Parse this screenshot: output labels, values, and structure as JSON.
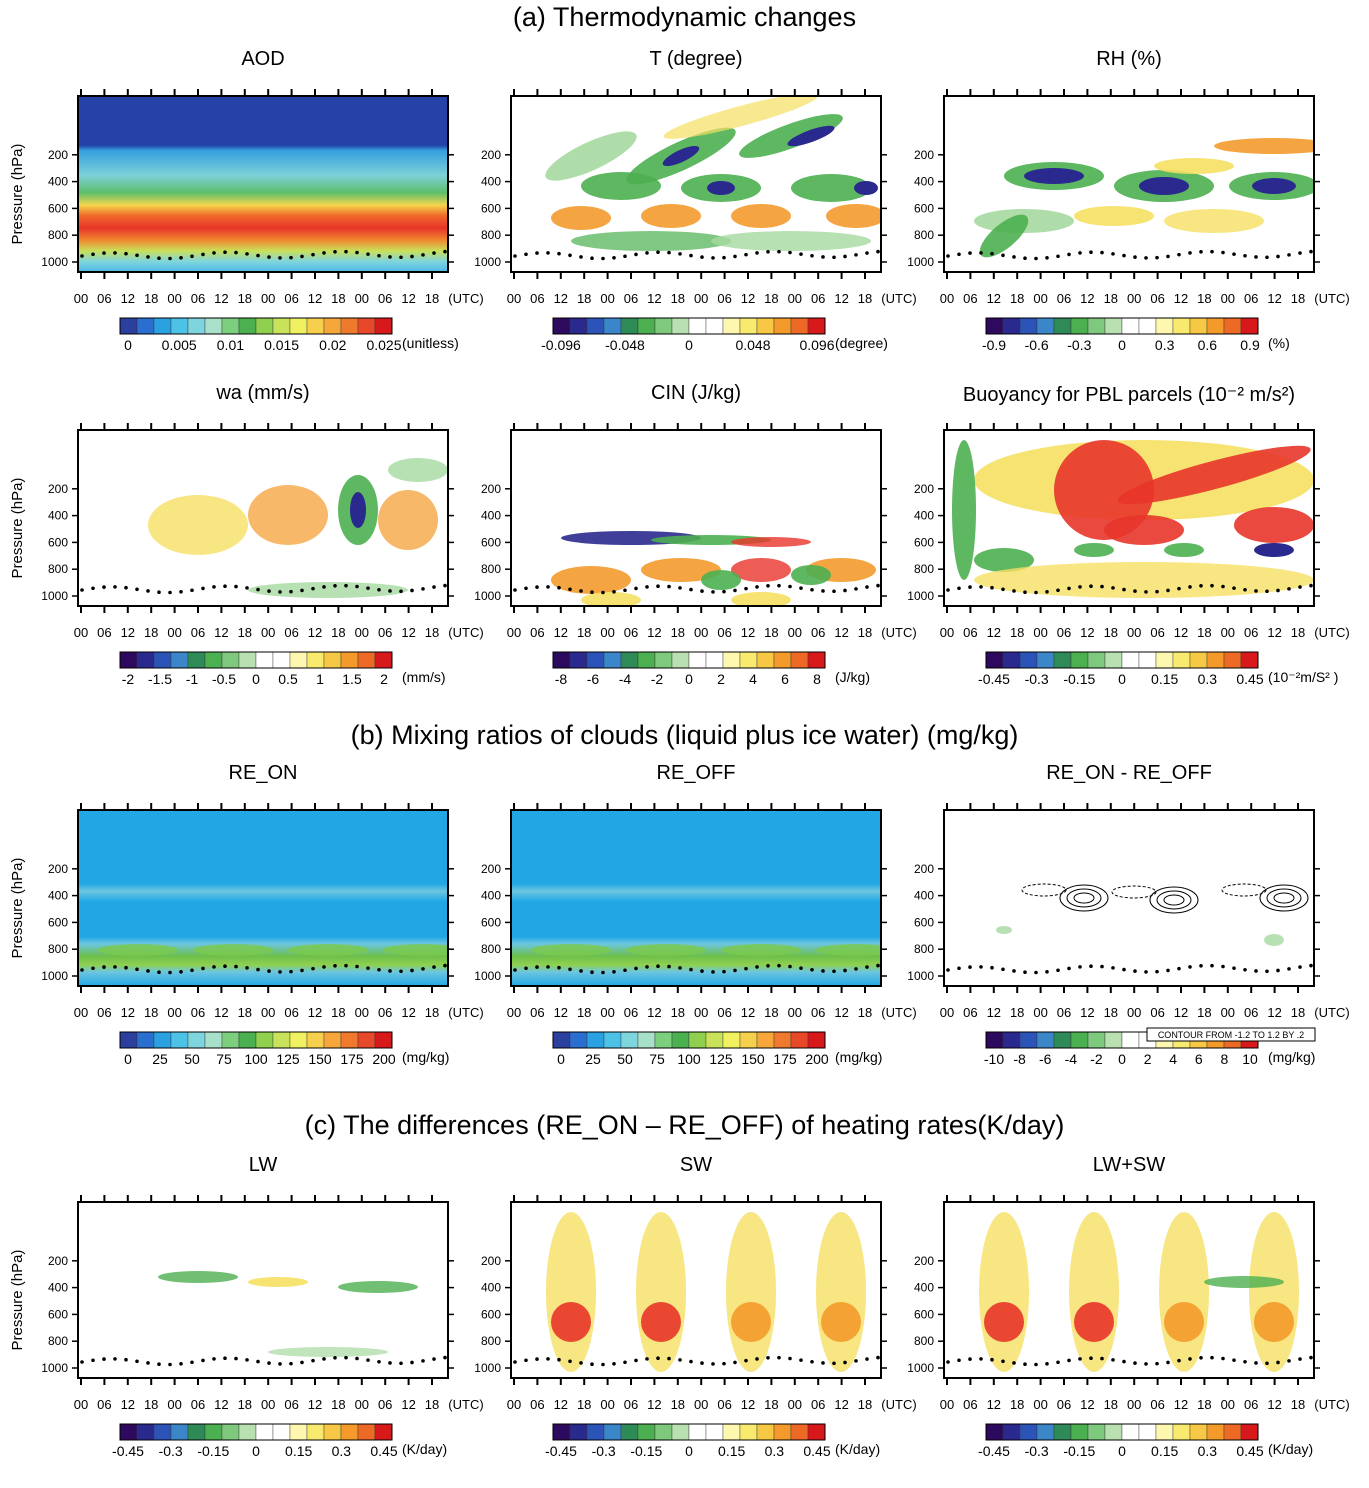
{
  "sections": [
    {
      "title": "(a) Thermodynamic changes"
    },
    {
      "title": "(b) Mixing ratios of clouds (liquid plus ice water) (mg/kg)"
    },
    {
      "title": "(c) The differences (RE_ON – RE_OFF) of heating rates(K/day)"
    }
  ],
  "chart_data": [
    {
      "type": "heatmap",
      "title": "AOD",
      "ylabel": "Pressure (hPa)",
      "yticks": [
        "200",
        "400",
        "600",
        "800",
        "1000"
      ],
      "xticks": [
        "00",
        "06",
        "12",
        "18",
        "00",
        "06",
        "12",
        "18",
        "00",
        "06",
        "12",
        "18",
        "00",
        "06",
        "12",
        "18"
      ],
      "xunit": "(UTC)",
      "colorbar": {
        "ticks": [
          "0",
          "0.005",
          "0.01",
          "0.015",
          "0.02",
          "0.025"
        ],
        "unit": "(unitless)",
        "palette": "rainbow_pos"
      },
      "pattern": "aod"
    },
    {
      "type": "heatmap",
      "title": "T (degree)",
      "ylabel": "",
      "yticks": [
        "200",
        "400",
        "600",
        "800",
        "1000"
      ],
      "xticks": [
        "00",
        "06",
        "12",
        "18",
        "00",
        "06",
        "12",
        "18",
        "00",
        "06",
        "12",
        "18",
        "00",
        "06",
        "12",
        "18"
      ],
      "xunit": "(UTC)",
      "colorbar": {
        "ticks": [
          "-0.096",
          "-0.048",
          "0",
          "0.048",
          "0.096"
        ],
        "unit": "(degree)",
        "palette": "diverging"
      },
      "pattern": "temp"
    },
    {
      "type": "heatmap",
      "title": "RH (%)",
      "ylabel": "",
      "yticks": [
        "200",
        "400",
        "600",
        "800",
        "1000"
      ],
      "xticks": [
        "00",
        "06",
        "12",
        "18",
        "00",
        "06",
        "12",
        "18",
        "00",
        "06",
        "12",
        "18",
        "00",
        "06",
        "12",
        "18"
      ],
      "xunit": "(UTC)",
      "colorbar": {
        "ticks": [
          "-0.9",
          "-0.6",
          "-0.3",
          "0",
          "0.3",
          "0.6",
          "0.9"
        ],
        "unit": "(%)",
        "palette": "diverging"
      },
      "pattern": "rh"
    },
    {
      "type": "heatmap",
      "title": "wa (mm/s)",
      "ylabel": "Pressure (hPa)",
      "yticks": [
        "200",
        "400",
        "600",
        "800",
        "1000"
      ],
      "xticks": [
        "00",
        "06",
        "12",
        "18",
        "00",
        "06",
        "12",
        "18",
        "00",
        "06",
        "12",
        "18",
        "00",
        "06",
        "12",
        "18"
      ],
      "xunit": "(UTC)",
      "colorbar": {
        "ticks": [
          "-2",
          "-1.5",
          "-1",
          "-0.5",
          "0",
          "0.5",
          "1",
          "1.5",
          "2"
        ],
        "unit": "(mm/s)",
        "palette": "diverging"
      },
      "pattern": "wa"
    },
    {
      "type": "heatmap",
      "title": "CIN (J/kg)",
      "ylabel": "",
      "yticks": [
        "200",
        "400",
        "600",
        "800",
        "1000"
      ],
      "xticks": [
        "00",
        "06",
        "12",
        "18",
        "00",
        "06",
        "12",
        "18",
        "00",
        "06",
        "12",
        "18",
        "00",
        "06",
        "12",
        "18"
      ],
      "xunit": "(UTC)",
      "colorbar": {
        "ticks": [
          "-8",
          "-6",
          "-4",
          "-2",
          "0",
          "2",
          "4",
          "6",
          "8"
        ],
        "unit": "(J/kg)",
        "palette": "diverging"
      },
      "pattern": "cin"
    },
    {
      "type": "heatmap",
      "title": "Buoyancy for PBL parcels (10⁻² m/s²)",
      "ylabel": "",
      "yticks": [
        "200",
        "400",
        "600",
        "800",
        "1000"
      ],
      "xticks": [
        "00",
        "06",
        "12",
        "18",
        "00",
        "06",
        "12",
        "18",
        "00",
        "06",
        "12",
        "18",
        "00",
        "06",
        "12",
        "18"
      ],
      "xunit": "(UTC)",
      "colorbar": {
        "ticks": [
          "-0.45",
          "-0.3",
          "-0.15",
          "0",
          "0.15",
          "0.3",
          "0.45"
        ],
        "unit": "(10⁻²m/S² )",
        "palette": "diverging"
      },
      "pattern": "buoy"
    },
    {
      "type": "heatmap",
      "title": "RE_ON",
      "ylabel": "Pressure (hPa)",
      "yticks": [
        "200",
        "400",
        "600",
        "800",
        "1000"
      ],
      "xticks": [
        "00",
        "06",
        "12",
        "18",
        "00",
        "06",
        "12",
        "18",
        "00",
        "06",
        "12",
        "18",
        "00",
        "06",
        "12",
        "18"
      ],
      "xunit": "(UTC)",
      "colorbar": {
        "ticks": [
          "0",
          "25",
          "50",
          "75",
          "100",
          "125",
          "150",
          "175",
          "200"
        ],
        "unit": "(mg/kg)",
        "palette": "rainbow_pos"
      },
      "pattern": "cloud"
    },
    {
      "type": "heatmap",
      "title": "RE_OFF",
      "ylabel": "",
      "yticks": [
        "200",
        "400",
        "600",
        "800",
        "1000"
      ],
      "xticks": [
        "00",
        "06",
        "12",
        "18",
        "00",
        "06",
        "12",
        "18",
        "00",
        "06",
        "12",
        "18",
        "00",
        "06",
        "12",
        "18"
      ],
      "xunit": "(UTC)",
      "colorbar": {
        "ticks": [
          "0",
          "25",
          "50",
          "75",
          "100",
          "125",
          "150",
          "175",
          "200"
        ],
        "unit": "(mg/kg)",
        "palette": "rainbow_pos"
      },
      "pattern": "cloud"
    },
    {
      "type": "heatmap",
      "title": "RE_ON - RE_OFF",
      "ylabel": "",
      "yticks": [
        "200",
        "400",
        "600",
        "800",
        "1000"
      ],
      "xticks": [
        "00",
        "06",
        "12",
        "18",
        "00",
        "06",
        "12",
        "18",
        "00",
        "06",
        "12",
        "18",
        "00",
        "06",
        "12",
        "18"
      ],
      "xunit": "(UTC)",
      "colorbar": {
        "ticks": [
          "-10",
          "-8",
          "-6",
          "-4",
          "-2",
          "0",
          "2",
          "4",
          "6",
          "8",
          "10"
        ],
        "unit": "(mg/kg)",
        "palette": "diverging"
      },
      "annotation": "CONTOUR FROM -1.2 TO 1.2 BY .2",
      "pattern": "clouddiff"
    },
    {
      "type": "heatmap",
      "title": "LW",
      "ylabel": "Pressure (hPa)",
      "yticks": [
        "200",
        "400",
        "600",
        "800",
        "1000"
      ],
      "xticks": [
        "00",
        "06",
        "12",
        "18",
        "00",
        "06",
        "12",
        "18",
        "00",
        "06",
        "12",
        "18",
        "00",
        "06",
        "12",
        "18"
      ],
      "xunit": "(UTC)",
      "colorbar": {
        "ticks": [
          "-0.45",
          "-0.3",
          "-0.15",
          "0",
          "0.15",
          "0.3",
          "0.45"
        ],
        "unit": "(K/day)",
        "palette": "diverging"
      },
      "pattern": "lw"
    },
    {
      "type": "heatmap",
      "title": "SW",
      "ylabel": "",
      "yticks": [
        "200",
        "400",
        "600",
        "800",
        "1000"
      ],
      "xticks": [
        "00",
        "06",
        "12",
        "18",
        "00",
        "06",
        "12",
        "18",
        "00",
        "06",
        "12",
        "18",
        "00",
        "06",
        "12",
        "18"
      ],
      "xunit": "(UTC)",
      "colorbar": {
        "ticks": [
          "-0.45",
          "-0.3",
          "-0.15",
          "0",
          "0.15",
          "0.3",
          "0.45"
        ],
        "unit": "(K/day)",
        "palette": "diverging"
      },
      "pattern": "sw"
    },
    {
      "type": "heatmap",
      "title": "LW+SW",
      "ylabel": "",
      "yticks": [
        "200",
        "400",
        "600",
        "800",
        "1000"
      ],
      "xticks": [
        "00",
        "06",
        "12",
        "18",
        "00",
        "06",
        "12",
        "18",
        "00",
        "06",
        "12",
        "18",
        "00",
        "06",
        "12",
        "18"
      ],
      "xunit": "(UTC)",
      "colorbar": {
        "ticks": [
          "-0.45",
          "-0.3",
          "-0.15",
          "0",
          "0.15",
          "0.3",
          "0.45"
        ],
        "unit": "(K/day)",
        "palette": "diverging"
      },
      "pattern": "lwsw"
    }
  ]
}
